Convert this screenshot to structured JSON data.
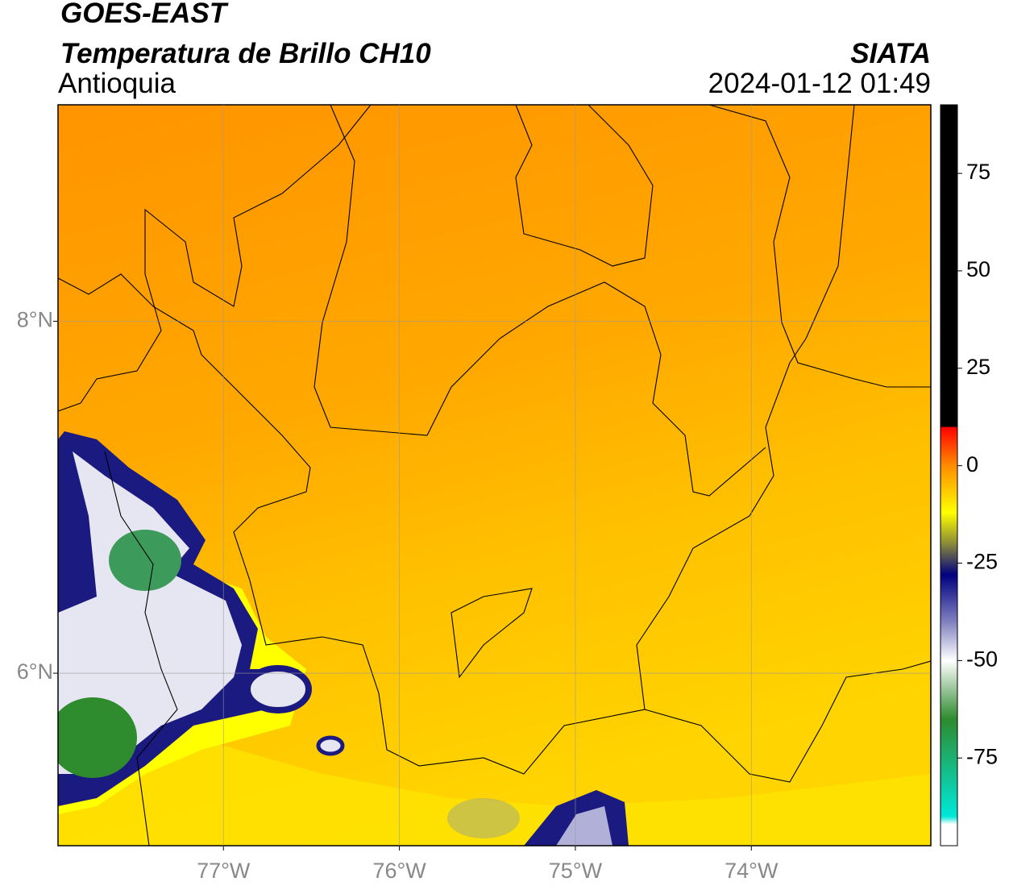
{
  "header": {
    "title": "GOES-EAST",
    "subtitle": "Temperatura de Brillo CH10",
    "region": "Antioquia",
    "source": "SIATA",
    "datetime": "2024-01-12 01:49"
  },
  "map": {
    "xlim": [
      -77.94,
      -72.98
    ],
    "ylim": [
      5.02,
      9.23
    ],
    "xticks": [
      {
        "value": -77,
        "label": "77°W"
      },
      {
        "value": -76,
        "label": "76°W"
      },
      {
        "value": -75,
        "label": "75°W"
      },
      {
        "value": -74,
        "label": "74°W"
      }
    ],
    "yticks": [
      {
        "value": 6,
        "label": "6°N"
      },
      {
        "value": 8,
        "label": "8°N"
      }
    ],
    "grid": true
  },
  "colorbar": {
    "lim": [
      -97.5,
      92.6
    ],
    "ticks": [
      -75,
      -50,
      -25,
      0,
      25,
      50,
      75
    ],
    "stops": [
      {
        "value": 92.6,
        "color": "#000000"
      },
      {
        "value": 10,
        "color": "#000000"
      },
      {
        "value": 9.9,
        "color": "#ff0000"
      },
      {
        "value": 0,
        "color": "#ff8c00"
      },
      {
        "value": -12,
        "color": "#ffff00"
      },
      {
        "value": -20,
        "color": "#8a8a3a"
      },
      {
        "value": -28,
        "color": "#000080"
      },
      {
        "value": -40,
        "color": "#8080c0"
      },
      {
        "value": -50,
        "color": "#ffffff"
      },
      {
        "value": -58,
        "color": "#90c090"
      },
      {
        "value": -65,
        "color": "#2e8b2e"
      },
      {
        "value": -90,
        "color": "#00e8d8"
      },
      {
        "value": -92,
        "color": "#ffffff"
      },
      {
        "value": -97.5,
        "color": "#ffffff"
      }
    ]
  }
}
